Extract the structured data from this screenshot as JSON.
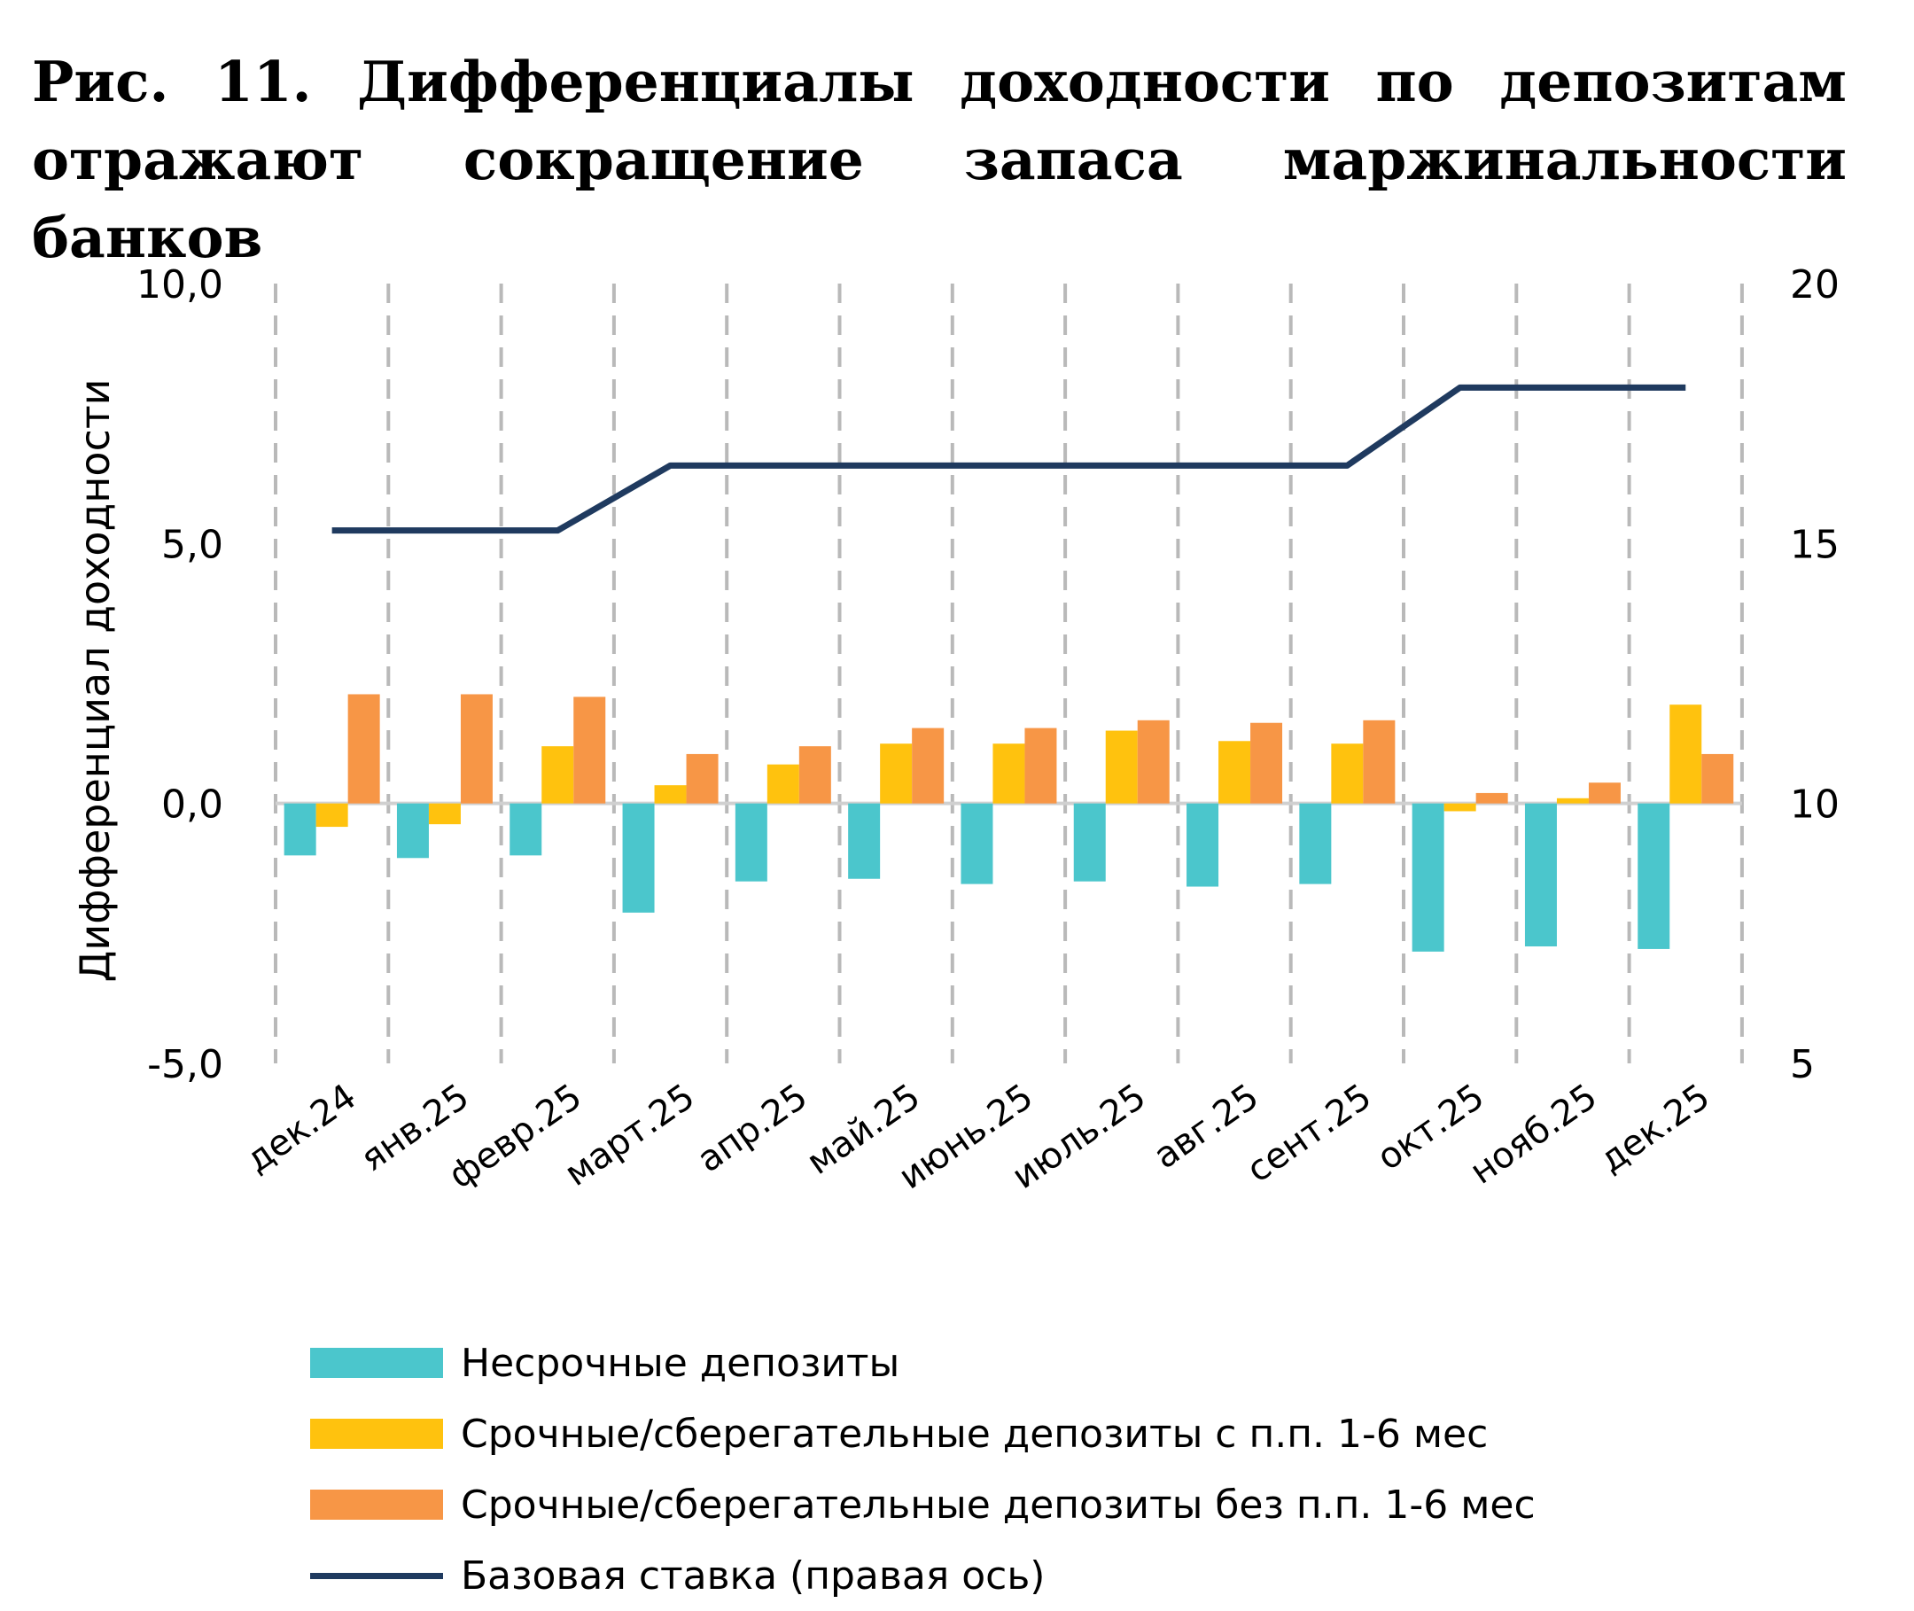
{
  "title": "Рис. 11. Дифференциалы доходности по депозитам отражают сокращение запаса маржинальности банков",
  "chart_data": {
    "type": "bar",
    "categories": [
      "дек.24",
      "янв.25",
      "февр.25",
      "март.25",
      "апр.25",
      "май.25",
      "июнь.25",
      "июль.25",
      "авг.25",
      "сент.25",
      "окт.25",
      "нояб.25",
      "дек.25"
    ],
    "ylabel": "Дифференциал доходности",
    "ylim": [
      -5,
      10
    ],
    "yticks": [
      "10,0",
      "5,0",
      "0,0",
      "-5,0"
    ],
    "y2lim": [
      5,
      20
    ],
    "y2ticks": [
      "20",
      "15",
      "10",
      "5"
    ],
    "series": [
      {
        "name": "Несрочные депозиты",
        "kind": "bar",
        "color": "#4BC6CC",
        "values": [
          -1.0,
          -1.05,
          -1.0,
          -2.1,
          -1.5,
          -1.45,
          -1.55,
          -1.5,
          -1.6,
          -1.55,
          -2.85,
          -2.75,
          -2.8
        ]
      },
      {
        "name": "Срочные/сберегательные депозиты с п.п. 1-6 мес",
        "kind": "bar",
        "color": "#FFC20E",
        "values": [
          -0.45,
          -0.4,
          1.1,
          0.35,
          0.75,
          1.15,
          1.15,
          1.4,
          1.2,
          1.15,
          -0.15,
          0.1,
          1.9
        ]
      },
      {
        "name": "Срочные/сберегательные депозиты без п.п. 1-6 мес",
        "kind": "bar",
        "color": "#F79646",
        "values": [
          2.1,
          2.1,
          2.05,
          0.95,
          1.1,
          1.45,
          1.45,
          1.6,
          1.55,
          1.6,
          0.2,
          0.4,
          0.95
        ]
      },
      {
        "name": "Базовая ставка (правая ось)",
        "kind": "line",
        "axis": "right",
        "color": "#1F3A5F",
        "values": [
          15.25,
          15.25,
          15.25,
          16.5,
          16.5,
          16.5,
          16.5,
          16.5,
          16.5,
          16.5,
          18,
          18,
          18
        ]
      }
    ],
    "legend_position": "bottom",
    "grid": "vertical-dashed"
  }
}
